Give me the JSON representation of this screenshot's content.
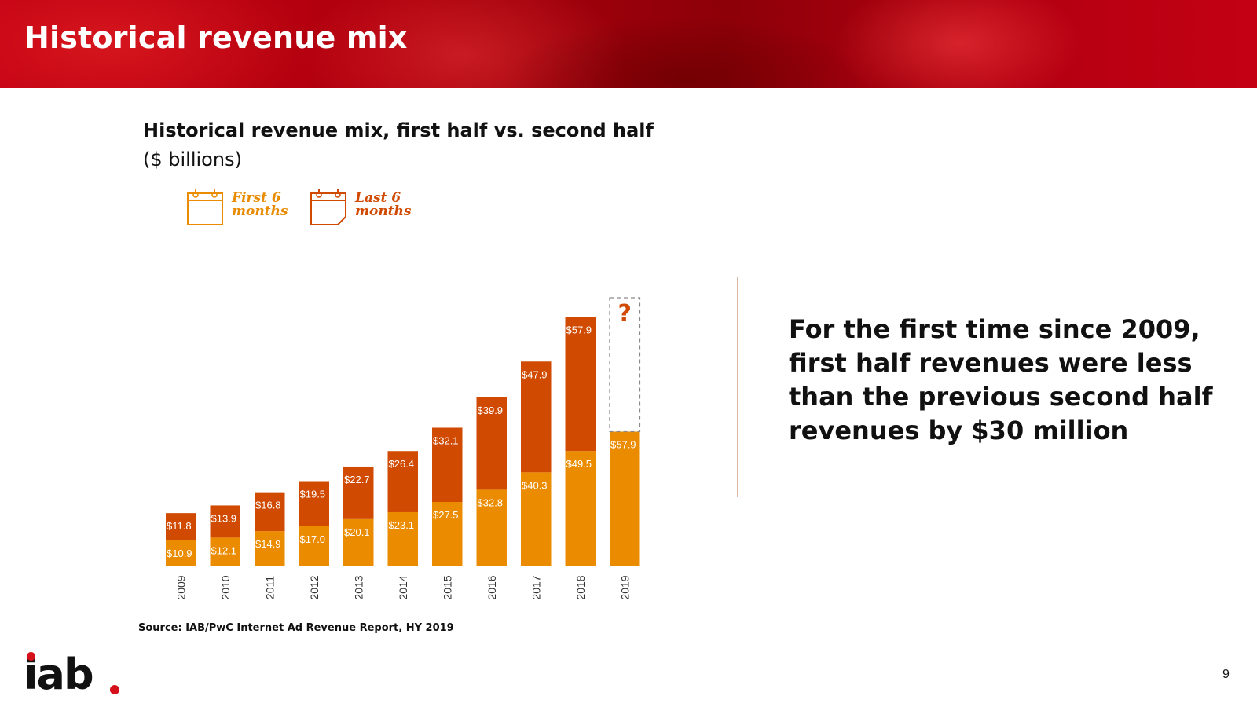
{
  "header": {
    "title": "Historical revenue mix"
  },
  "chart_data": {
    "type": "bar",
    "stacked": true,
    "title": "Historical revenue mix, first half vs. second half",
    "unit_label": "($ billions)",
    "categories": [
      "2009",
      "2010",
      "2011",
      "2012",
      "2013",
      "2014",
      "2015",
      "2016",
      "2017",
      "2018",
      "2019"
    ],
    "series": [
      {
        "name": "First 6 months",
        "color": "#eb8c00",
        "values": [
          10.9,
          12.1,
          14.9,
          17.0,
          20.1,
          23.1,
          27.5,
          32.8,
          40.3,
          49.5,
          57.9
        ],
        "labels": [
          "$10.9",
          "$12.1",
          "$14.9",
          "$17.0",
          "$20.1",
          "$23.1",
          "$27.5",
          "$32.8",
          "$40.3",
          "$49.5",
          "$57.9"
        ]
      },
      {
        "name": "Last 6 months",
        "color": "#d04a02",
        "values": [
          11.8,
          13.9,
          16.8,
          19.5,
          22.7,
          26.4,
          32.1,
          39.9,
          47.9,
          57.9,
          null
        ],
        "labels": [
          "$11.8",
          "$13.9",
          "$16.8",
          "$19.5",
          "$22.7",
          "$26.4",
          "$32.1",
          "$39.9",
          "$47.9",
          "$57.9",
          ""
        ]
      }
    ],
    "unknown_marker": {
      "category": "2019",
      "text": "?"
    },
    "ylim": [
      0,
      120
    ],
    "xlabel": "",
    "ylabel": ""
  },
  "legend": {
    "first": {
      "line1": "First 6",
      "line2": "months"
    },
    "last": {
      "line1": "Last 6",
      "line2": "months"
    }
  },
  "callout": {
    "lines": [
      "For the first time since 2009,",
      "first half revenues were less",
      "than the previous second half",
      "revenues by $30 million"
    ]
  },
  "source": "Source: IAB/PwC Internet Ad Revenue Report, HY 2019",
  "logo": {
    "text": "iab"
  },
  "page_number": "9",
  "colors": {
    "header_red": "#b0000e",
    "first_half": "#eb8c00",
    "second_half": "#d04a02"
  }
}
